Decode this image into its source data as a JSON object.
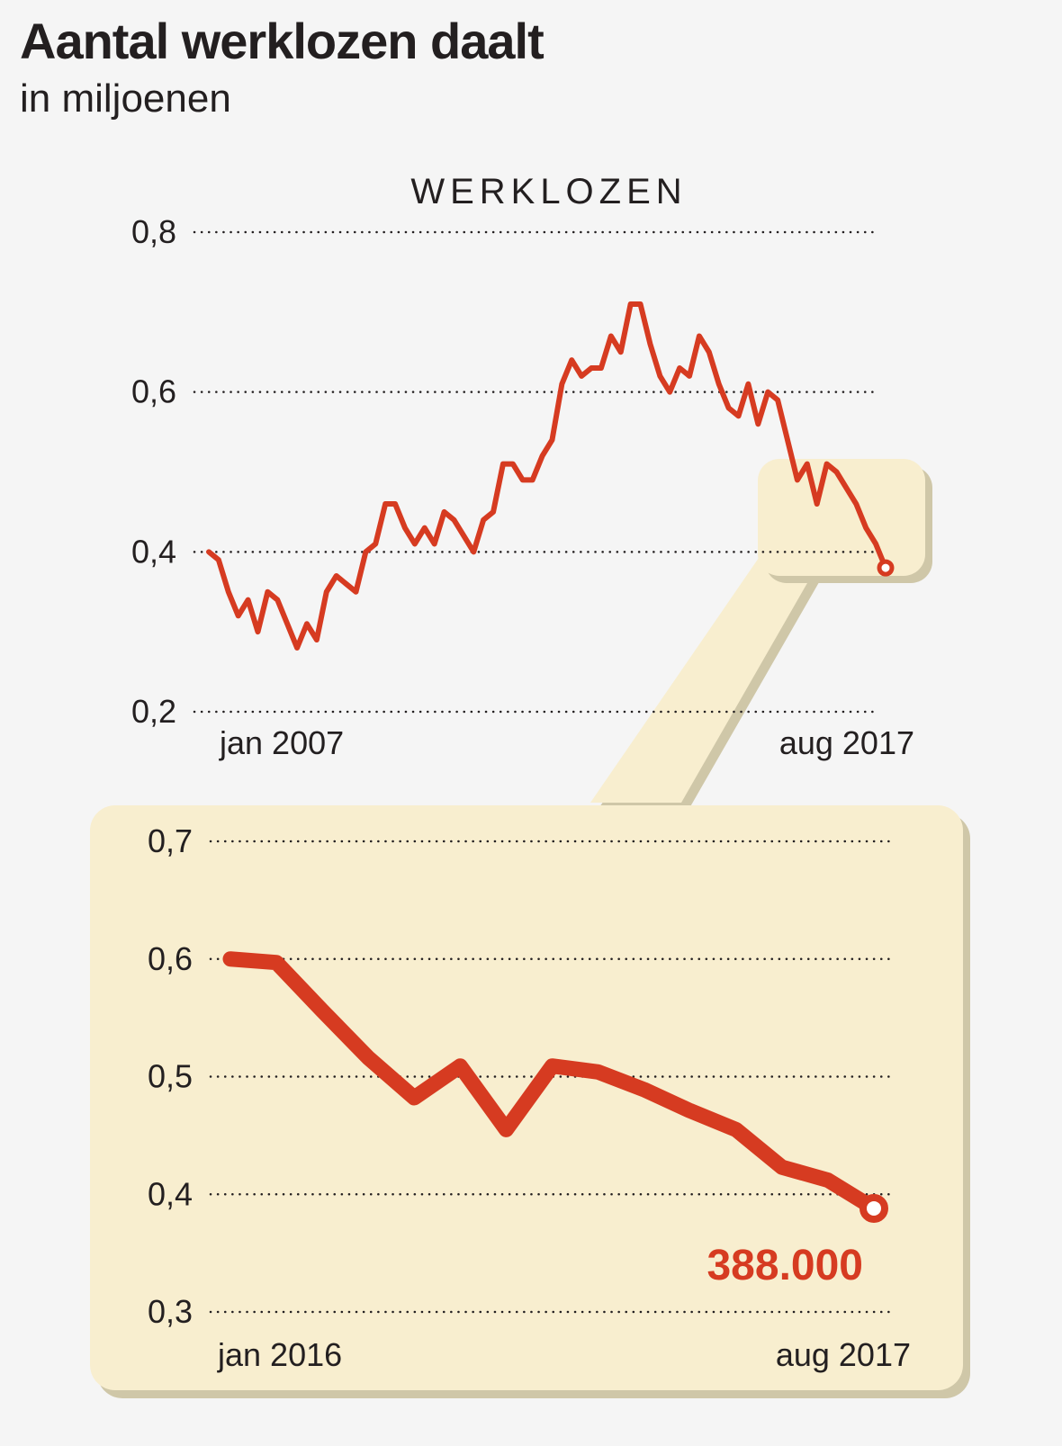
{
  "title": "Aantal werklozen daalt",
  "subtitle": "in miljoenen",
  "colors": {
    "line": "#d63b21",
    "highlight": "#f8eecf",
    "shadow": "#cfc7a8",
    "background": "#f5f5f5"
  },
  "chart_data": [
    {
      "type": "line",
      "series_label": "WERKLOZEN",
      "ylim": [
        0.2,
        0.8
      ],
      "yticks": [
        0.8,
        0.6,
        0.4,
        0.2
      ],
      "ytick_labels": [
        "0,8",
        "0,6",
        "0,4",
        "0,2"
      ],
      "x_start_label": "jan 2007",
      "x_end_label": "aug 2017",
      "grid": "dotted horizontal",
      "highlight_period": "jan 2016 – aug 2017",
      "values": [
        0.4,
        0.39,
        0.35,
        0.32,
        0.34,
        0.3,
        0.35,
        0.34,
        0.31,
        0.28,
        0.31,
        0.29,
        0.35,
        0.37,
        0.36,
        0.35,
        0.4,
        0.41,
        0.46,
        0.46,
        0.43,
        0.41,
        0.43,
        0.41,
        0.45,
        0.44,
        0.42,
        0.4,
        0.44,
        0.45,
        0.51,
        0.51,
        0.49,
        0.49,
        0.52,
        0.54,
        0.61,
        0.64,
        0.62,
        0.63,
        0.63,
        0.67,
        0.65,
        0.71,
        0.71,
        0.66,
        0.62,
        0.6,
        0.63,
        0.62,
        0.67,
        0.65,
        0.61,
        0.58,
        0.57,
        0.61,
        0.56,
        0.6,
        0.59,
        0.54,
        0.49,
        0.51,
        0.46,
        0.51,
        0.5,
        0.48,
        0.46,
        0.43,
        0.41,
        0.38
      ]
    },
    {
      "type": "line",
      "ylim": [
        0.3,
        0.7
      ],
      "yticks": [
        0.7,
        0.6,
        0.5,
        0.4,
        0.3
      ],
      "ytick_labels": [
        "0,7",
        "0,6",
        "0,5",
        "0,4",
        "0,3"
      ],
      "x_start_label": "jan 2016",
      "x_end_label": "aug 2017",
      "grid": "dotted horizontal",
      "values": [
        0.6,
        0.597,
        0.556,
        0.516,
        0.482,
        0.509,
        0.455,
        0.509,
        0.504,
        0.489,
        0.471,
        0.455,
        0.423,
        0.412,
        0.388
      ],
      "last_value_label": "388.000"
    }
  ]
}
